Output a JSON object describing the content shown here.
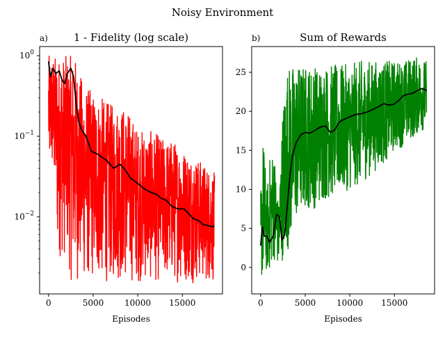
{
  "suptitle": "Noisy Environment",
  "chart_data": [
    {
      "type": "line",
      "panel_label": "a)",
      "title": "1 - Fidelity (log scale)",
      "xlabel": "Episodes",
      "ylabel": "",
      "yscale": "log",
      "xlim": [
        -1000,
        19500
      ],
      "ylim": [
        0.0011,
        1.3
      ],
      "xticks": [
        0,
        5000,
        10000,
        15000
      ],
      "xtick_labels": [
        "0",
        "5000",
        "10000",
        "15000"
      ],
      "yticks": [
        1,
        0.1,
        0.01
      ],
      "ytick_labels": [
        "10^0",
        "10^-1",
        "10^-2"
      ],
      "grid": false,
      "legend": "none",
      "series": [
        {
          "role": "raw",
          "color": "#ff0000",
          "x_range": [
            0,
            18600
          ],
          "envelope": {
            "x": [
              0,
              400,
              600,
              1000,
              1500,
              2000,
              2500,
              3000,
              3500,
              4000,
              5000,
              6000,
              7000,
              8000,
              9000,
              10000,
              11000,
              12000,
              13000,
              14000,
              15000,
              16000,
              17000,
              18000,
              18600
            ],
            "upper": [
              1.0,
              1.0,
              1.0,
              1.0,
              1.0,
              1.0,
              1.0,
              0.95,
              0.6,
              0.45,
              0.35,
              0.3,
              0.25,
              0.25,
              0.2,
              0.12,
              0.12,
              0.11,
              0.09,
              0.09,
              0.07,
              0.06,
              0.05,
              0.04,
              0.035
            ],
            "lower": [
              0.03,
              0.03,
              0.02,
              0.003,
              0.003,
              0.003,
              0.0015,
              0.0015,
              0.0015,
              0.0015,
              0.0015,
              0.0015,
              0.0015,
              0.0015,
              0.0015,
              0.0015,
              0.0015,
              0.0015,
              0.0015,
              0.0015,
              0.0015,
              0.0015,
              0.0015,
              0.0015,
              0.0015
            ]
          }
        },
        {
          "role": "moving-average",
          "color": "#000000",
          "x": [
            0,
            200,
            500,
            800,
            1200,
            1500,
            1800,
            2100,
            2500,
            2800,
            3100,
            3400,
            3700,
            4200,
            4800,
            5500,
            6500,
            7300,
            8000,
            8600,
            9200,
            10000,
            10800,
            11500,
            12100,
            12600,
            13200,
            13800,
            14500,
            15200,
            15700,
            16200,
            16800,
            17300,
            17800,
            18300,
            18600
          ],
          "y": [
            0.85,
            0.55,
            0.7,
            0.6,
            0.65,
            0.5,
            0.45,
            0.6,
            0.7,
            0.55,
            0.25,
            0.15,
            0.12,
            0.1,
            0.065,
            0.06,
            0.05,
            0.04,
            0.045,
            0.038,
            0.03,
            0.026,
            0.022,
            0.02,
            0.019,
            0.017,
            0.016,
            0.0135,
            0.0125,
            0.0125,
            0.011,
            0.0095,
            0.009,
            0.008,
            0.0078,
            0.0075,
            0.0077
          ]
        }
      ]
    },
    {
      "type": "line",
      "panel_label": "b)",
      "title": "Sum of Rewards",
      "xlabel": "Episodes",
      "ylabel": "",
      "yscale": "linear",
      "xlim": [
        -1000,
        19500
      ],
      "ylim": [
        -3.4,
        28.3
      ],
      "xticks": [
        0,
        5000,
        10000,
        15000
      ],
      "xtick_labels": [
        "0",
        "5000",
        "10000",
        "15000"
      ],
      "yticks": [
        0,
        5,
        10,
        15,
        20,
        25
      ],
      "ytick_labels": [
        "0",
        "5",
        "10",
        "15",
        "20",
        "25"
      ],
      "grid": false,
      "legend": "none",
      "series": [
        {
          "role": "raw",
          "color": "#008000",
          "x_range": [
            0,
            18600
          ],
          "envelope": {
            "x": [
              0,
              300,
              700,
              1000,
              1500,
              2000,
              2500,
              3000,
              3500,
              4000,
              5000,
              6000,
              7000,
              8000,
              9000,
              10000,
              11000,
              12000,
              13000,
              14000,
              15000,
              16000,
              17000,
              18000,
              18600
            ],
            "upper": [
              10,
              17,
              10,
              14,
              15.5,
              8,
              21,
              26,
              26,
              26,
              26,
              26,
              26,
              26,
              26,
              26,
              26.5,
              26.5,
              26.5,
              26.5,
              26.5,
              26.5,
              27,
              27,
              26.5
            ],
            "lower": [
              -1.8,
              -1.5,
              -0.5,
              -0.5,
              1.0,
              0,
              1.0,
              2.0,
              4.0,
              6.0,
              7.5,
              7.5,
              8.5,
              9.0,
              9.5,
              10.0,
              10.5,
              11.5,
              12.5,
              13.5,
              15.0,
              15.5,
              16.5,
              17.5,
              17.5
            ]
          }
        },
        {
          "role": "moving-average",
          "color": "#000000",
          "x": [
            0,
            200,
            400,
            700,
            1000,
            1400,
            1800,
            2100,
            2400,
            2700,
            3000,
            3300,
            3600,
            4000,
            4500,
            5000,
            5500,
            6000,
            6700,
            7300,
            7800,
            8300,
            8800,
            9400,
            10000,
            10700,
            11300,
            11900,
            12500,
            13200,
            13800,
            14300,
            14900,
            15400,
            16000,
            16500,
            17000,
            17500,
            18000,
            18400,
            18600
          ],
          "y": [
            2.8,
            5.2,
            4.0,
            4.0,
            3.2,
            4.0,
            6.8,
            6.5,
            3.5,
            4.2,
            8.0,
            12.0,
            14.5,
            16.0,
            17.0,
            17.3,
            17.2,
            17.5,
            18.0,
            18.1,
            17.3,
            17.6,
            18.6,
            19.0,
            19.3,
            19.6,
            19.7,
            19.9,
            20.2,
            20.6,
            21.0,
            20.8,
            20.9,
            21.3,
            22.0,
            22.2,
            22.3,
            22.6,
            22.9,
            22.8,
            22.6
          ]
        }
      ]
    }
  ]
}
